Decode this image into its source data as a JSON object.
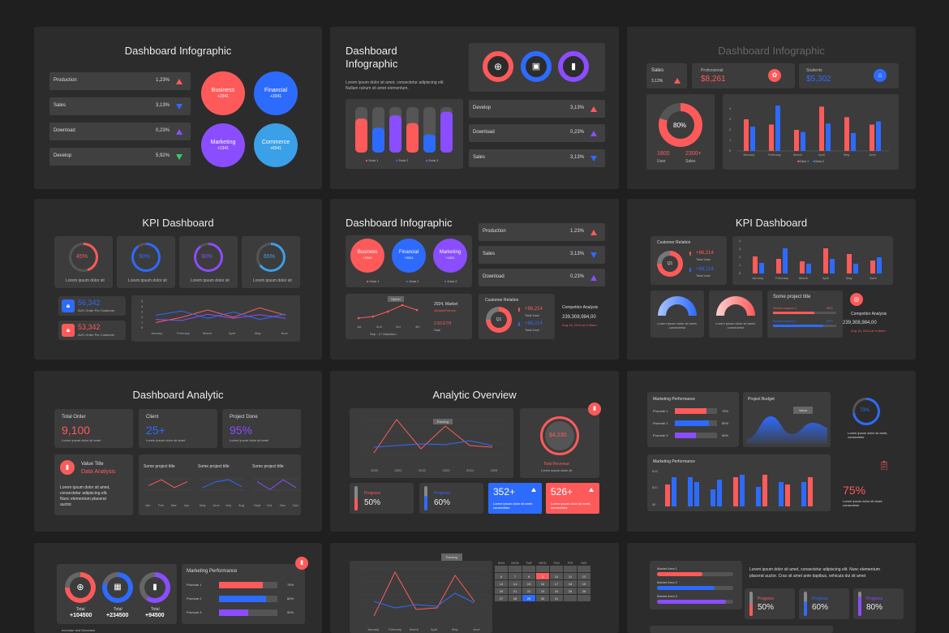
{
  "colors": {
    "red": "#ff5a5a",
    "blue": "#2d6bff",
    "purple": "#8a4dff",
    "cyan": "#3aa0e8",
    "bg": "#1f1f1f",
    "panel": "#2c2c2c"
  },
  "s1": {
    "title": "Dashboard Infographic",
    "rows": [
      {
        "label": "Production",
        "value": "1,23%",
        "trend": "up-red"
      },
      {
        "label": "Sales",
        "value": "3,13%",
        "trend": "down-blue"
      },
      {
        "label": "Download",
        "value": "0,23%",
        "trend": "up-purple"
      },
      {
        "label": "Develop",
        "value": "5,92%",
        "trend": "down-green"
      }
    ],
    "circles": [
      {
        "label": "Business",
        "value": "+2341"
      },
      {
        "label": "Financial",
        "value": "+3341"
      },
      {
        "label": "Marketing",
        "value": "+1341"
      },
      {
        "label": "Commerce",
        "value": "+6541"
      }
    ]
  },
  "s2": {
    "title_line1": "Dashboard",
    "title_line2": "Infographic",
    "desc_line1": "Lorem ipsum dolor sit amet, consectetur adipiscing elit.",
    "desc_line2": "Nullam rutrum sit amet elementum.",
    "icons": [
      "globe-icon",
      "browser-icon",
      "chart-icon"
    ],
    "legend": [
      "Data 1",
      "Data 2",
      "Data 3"
    ],
    "rows": [
      {
        "label": "Develop",
        "value": "3,13%",
        "trend": "up-red"
      },
      {
        "label": "Download",
        "value": "0,23%",
        "trend": "up-purple"
      },
      {
        "label": "Sales",
        "value": "3,13%",
        "trend": "down-blue"
      }
    ]
  },
  "s3": {
    "title": "Dashboard Infographic",
    "sales_label": "Sales",
    "sales_value": "3,13%",
    "professional_label": "Professional",
    "professional_value": "$8,261",
    "students_label": "Students",
    "students_value": "$5,302",
    "donut_value": "80%",
    "user_value": "1800",
    "user_label": "User",
    "sales2_value": "2300+",
    "sales2_label": "Sales",
    "legend": [
      "Data 1",
      "Data 2"
    ]
  },
  "s4": {
    "title": "KPI Dashboard",
    "gauges": [
      {
        "value": "45%",
        "label": "Lorem ipsum dolor sit"
      },
      {
        "value": "90%",
        "label": "Lorem ipsum dolor sit"
      },
      {
        "value": "90%",
        "label": "Lorem ipsum dolor sit"
      },
      {
        "value": "65%",
        "label": "Lorem ipsum dolor sit"
      }
    ],
    "stat1_value": "56,342",
    "stat1_label": "AVG Order Per Customer",
    "stat2_value": "53,342",
    "stat2_label": "AVG Order Per Customer"
  },
  "s5": {
    "title": "Dashboard Infographic",
    "circles": [
      {
        "label": "Business",
        "value": "+2341"
      },
      {
        "label": "Financial",
        "value": "+3341"
      },
      {
        "label": "Marketing",
        "value": "+1341"
      }
    ],
    "legend": [
      "Data 1",
      "Data 2",
      "Data 3"
    ],
    "rows": [
      {
        "label": "Production",
        "value": "1,23%",
        "trend": "up-red"
      },
      {
        "label": "Sales",
        "value": "3,13%",
        "trend": "down-blue"
      },
      {
        "label": "Download",
        "value": "0,23%",
        "trend": "up-purple"
      }
    ],
    "tooltip": "Option",
    "market_year": "2024, Market",
    "market_handle": "@AtmoPetrolin",
    "eth": "2.50 ETH",
    "eth_label": "Sale",
    "chart_legend": "Sep - 17 Marchkd...",
    "cr_title": "Customer Relation",
    "cr_up": "+86,214",
    "cr_up_label": "Total User",
    "cr_down": "+86,214",
    "cr_down_label": "Total User",
    "comp_title": "Competitor Analysis",
    "comp_value": "239,308,984,00",
    "comp_date": "Aug 18, 2024 at 9:40am"
  },
  "s6": {
    "title": "KPI Dashboard",
    "cr_title": "Customer Relation",
    "cr_up": "+86,214",
    "cr_up_label": "Total User",
    "cr_down": "+86,214",
    "cr_down_label": "Total User",
    "gauge_label": "Lorem ipsum dolor sit amet, consectetur",
    "project_title": "Some project title",
    "review1": "Review Aspect 1",
    "review1_pct": "65%",
    "review2": "Review Aspect 2",
    "review2_pct": "80%",
    "comp_title": "Competitor Analysis",
    "comp_value": "239,308,984,00",
    "comp_date": "Aug 18, 2024 at 9:40am"
  },
  "s7": {
    "title": "Dashboard Analytic",
    "kpis": [
      {
        "label": "Total Order",
        "value": "9,100",
        "sub": "Lorem ipsum dolor sit amet"
      },
      {
        "label": "Client",
        "value": "25+",
        "sub": "Lorem ipsum dolor sit amet"
      },
      {
        "label": "Project Done",
        "value": "95%",
        "sub": "Lorem ipsum dolor sit amet"
      }
    ],
    "value_title": "Value Title",
    "value_sub": "Data Analysis",
    "desc": [
      "Lorem ipsum dolor sit amet,",
      "consectetur adipiscing elit.",
      "Nunc elementum placerat",
      "auctor."
    ],
    "projects": [
      {
        "title": "Some project title",
        "months": [
          "Jan",
          "Feb",
          "Mar",
          "Apr"
        ]
      },
      {
        "title": "Some project title",
        "months": [
          "May",
          "June",
          "July",
          "Aug"
        ]
      },
      {
        "title": "Some project title",
        "months": [
          "Sept",
          "Oct",
          "Nov",
          "Dec"
        ]
      }
    ]
  },
  "s8": {
    "title": "Analytic Overview",
    "tooltip": "Earning",
    "years": [
      "2020",
      "2021",
      "2022",
      "2023",
      "2024",
      "2025"
    ],
    "revenue_value": "$4,230",
    "revenue_label": "Total Revenue",
    "revenue_sub": "Lorem ipsum dolor sit",
    "progress1_label": "Progress",
    "progress1_value": "50%",
    "progress2_label": "Progress",
    "progress2_value": "60%",
    "box1_value": "352+",
    "box1_sub": "Lorem ipsum dolor sit amet, consectetur",
    "box2_value": "526+",
    "box2_sub": "Lorem ipsum dolor sit amet, consectetur"
  },
  "s9": {
    "mp_title": "Marketing Performance",
    "promotes": [
      {
        "label": "Promote 1",
        "pct": "75%",
        "fill": 0.75
      },
      {
        "label": "Promote 2",
        "pct": "80%",
        "fill": 0.8
      },
      {
        "label": "Promote 3",
        "pct": "50%",
        "fill": 0.5
      }
    ],
    "budget_title": "Project Budget",
    "budget_tip": "Value",
    "ring_value": "73%",
    "ring_sub": "Lorem ipsum dolor sit amet, consectetur",
    "mp2_title": "Marketing Performance",
    "y_labels": [
      "$15",
      "$10",
      "$0"
    ],
    "pct_value": "75%",
    "pct_sub": "Lorem ipsum dolor sit amet, consectetur"
  },
  "s10": {
    "totals": [
      {
        "label": "Total",
        "value": "+104500"
      },
      {
        "label": "Total",
        "value": "+234500"
      },
      {
        "label": "Total",
        "value": "+94500"
      }
    ],
    "mp_title": "Marketing Performance",
    "promotes": [
      {
        "label": "Promote 1",
        "pct": "75%",
        "fill": 0.75
      },
      {
        "label": "Promote 2",
        "pct": "80%",
        "fill": 0.8
      },
      {
        "label": "Promote 3",
        "pct": "50%",
        "fill": 0.5
      }
    ],
    "footer": "Increase and Decrease"
  },
  "s11": {
    "tooltip": "Earning",
    "months": [
      "January",
      "February",
      "March",
      "April",
      "May",
      "June"
    ],
    "days": [
      "SUN",
      "MON",
      "TUE",
      "WED",
      "THU",
      "FRI",
      "SAT"
    ],
    "cal_rows": [
      [
        "",
        "",
        "",
        "",
        "",
        "",
        ""
      ],
      [
        "6",
        "7",
        "8",
        "1",
        "10",
        "11",
        "12"
      ],
      [
        "13",
        "14",
        "15",
        "16",
        "17",
        "18",
        "19"
      ],
      [
        "20",
        "21",
        "22",
        "23",
        "24",
        "25",
        "26"
      ],
      [
        "27",
        "28",
        "29",
        "30",
        "31",
        "",
        ""
      ]
    ]
  },
  "s12": {
    "markets": [
      {
        "label": "Market Area 1",
        "fill": 0.6
      },
      {
        "label": "Market Area 2",
        "fill": 0.75
      },
      {
        "label": "Market Area 3",
        "fill": 0.9
      }
    ],
    "desc": [
      "Lorem ipsum dolor sit amet, consectetur adipiscing elit. Nunc elementum",
      "placerat auctor. Cras sit amet ante dapibus, vehicula dui sit amet"
    ],
    "progress": [
      {
        "label": "Progress",
        "value": "50%"
      },
      {
        "label": "Progress",
        "value": "60%"
      },
      {
        "label": "Progress",
        "value": "80%"
      }
    ]
  }
}
